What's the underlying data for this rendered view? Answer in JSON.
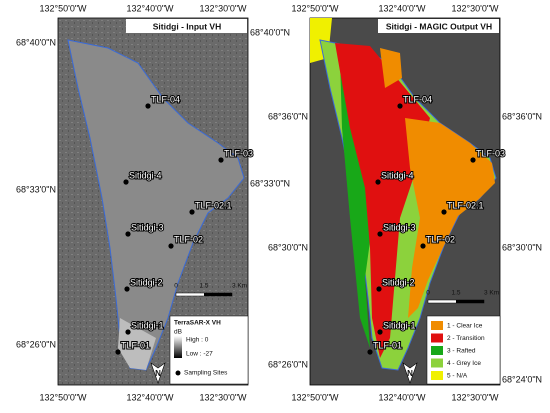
{
  "panels": [
    {
      "title": "Sitidgi - Input VH",
      "top_labels": [
        "132°50'0\"W",
        "132°40'0\"W",
        "132°30'0\"W"
      ],
      "bottom_labels": [
        "132°50'0\"W",
        "132°40'0\"W",
        "132°30'0\"W"
      ],
      "left_labels": [
        "68°40'0\"N",
        "68°33'0\"N",
        "68°26'0\"N"
      ],
      "right_labels": [
        "68°40'0\"N",
        "68°33'0\"N"
      ],
      "sites": [
        "TLF-04",
        "TLF-03",
        "Sitidgi-4",
        "TLF-02.1",
        "Sitidgi-3",
        "TLF-02",
        "Sitidgi-2",
        "Sitidgi-1",
        "TLF-01"
      ],
      "scale_bar": [
        "0",
        "1.5",
        "3 Km"
      ],
      "legend": {
        "title": "TerraSAR-X VH",
        "unit": "dB",
        "high": "High : 0",
        "low": "Low : -27",
        "sites": "Sampling Sites"
      },
      "north": "N"
    },
    {
      "title": "Sitidgi - MAGIC Output VH",
      "top_labels": [
        "132°50'0\"W",
        "132°40'0\"W",
        "132°30'0\"W"
      ],
      "bottom_labels": [
        "132°50'0\"W",
        "132°40'0\"W",
        "132°30'0\"W"
      ],
      "left_labels": [
        "68°36'0\"N",
        "68°30'0\"N",
        "68°26'0\"N"
      ],
      "right_labels": [
        "68°36'0\"N",
        "68°30'0\"N",
        "68°24'0\"N"
      ],
      "sites": [
        "TLF-04",
        "TLF-03",
        "Sitidgi-4",
        "TLF-02.1",
        "Sitidgi-3",
        "TLF-02",
        "Sitidgi-2",
        "Sitidgi-1",
        "TLF-01"
      ],
      "scale_bar": [
        "0",
        "1.5",
        "3 Km"
      ],
      "legend": {
        "classes": [
          {
            "name": "1 - Clear Ice",
            "color": "#f08c00"
          },
          {
            "name": "2 - Transition",
            "color": "#e01010"
          },
          {
            "name": "3 - Rafted",
            "color": "#18a818"
          },
          {
            "name": "4 - Grey Ice",
            "color": "#8cd23c"
          },
          {
            "name": "5 - N/A",
            "color": "#f0f000"
          }
        ]
      },
      "north": "N"
    }
  ]
}
